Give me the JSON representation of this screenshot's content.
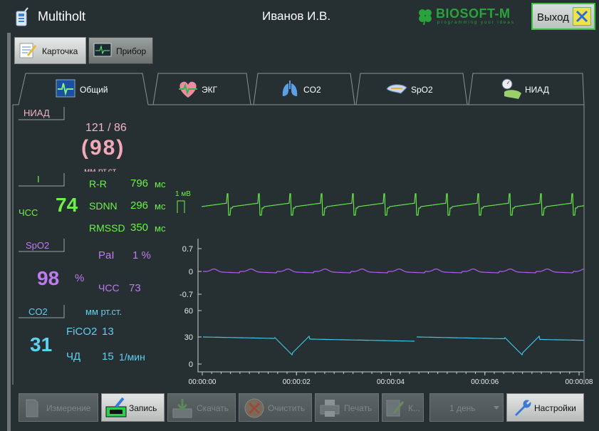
{
  "header": {
    "app_title": "Multiholt",
    "user_name": "Иванов И.В.",
    "logo_text": "BIOSOFT-M",
    "logo_sub": "programming your ideas",
    "exit_label": "Выход"
  },
  "mode_buttons": {
    "card_label": "Карточка",
    "device_label": "Прибор"
  },
  "tabs": [
    {
      "label": "Общий",
      "icon": "ecg-monitor-icon"
    },
    {
      "label": "ЭКГ",
      "icon": "heart-icon"
    },
    {
      "label": "CO2",
      "icon": "lungs-icon"
    },
    {
      "label": "SpO2",
      "icon": "finger-sensor-icon"
    },
    {
      "label": "НИАД",
      "icon": "blood-pressure-icon"
    }
  ],
  "nibp": {
    "tag": "НИАД",
    "sys_dia": "121 / 86",
    "mean": "(98)",
    "unit": "мм рт.ст."
  },
  "ecg": {
    "lead": "I",
    "hr_label": "ЧСС",
    "hr_value": "74",
    "rr_label": "R-R",
    "rr_value": "796",
    "rr_unit": "мс",
    "sdnn_label": "SDNN",
    "sdnn_value": "296",
    "sdnn_unit": "мс",
    "rmssd_label": "RMSSD",
    "rmssd_value": "350",
    "rmssd_unit": "мс",
    "scale_label": "1 мВ"
  },
  "spo2": {
    "tag": "SpO2",
    "value": "98",
    "unit": "%",
    "pai_label": "PaI",
    "pai_value": "1 %",
    "hr_label": "ЧСС",
    "hr_value": "73"
  },
  "co2": {
    "tag": "CO2",
    "unit": "мм рт.ст.",
    "fico2_label": "FiCO2",
    "fico2_value": "13",
    "value": "31",
    "rr_label": "ЧД",
    "rr_value": "15",
    "rr_unit": "1/мин"
  },
  "chart_data": {
    "type": "line",
    "x_ticks": [
      "00:00:00",
      "00:00:02",
      "00:00:04",
      "00:00:06",
      "00:00:08"
    ],
    "pleth_y_ticks": [
      "0.7",
      "0",
      "-0.7"
    ],
    "co2_y_ticks": [
      "60",
      "30",
      "0"
    ],
    "colors": {
      "ecg": "#66e34a",
      "pleth": "#b05cf0",
      "co2": "#3ec4e6"
    }
  },
  "bottom_buttons": [
    {
      "label": "Измерение",
      "enabled": false,
      "icon": "document-icon"
    },
    {
      "label": "Запись",
      "enabled": true,
      "icon": "recorder-icon"
    },
    {
      "label": "Скачать",
      "enabled": false,
      "icon": "download-icon"
    },
    {
      "label": "Очистить",
      "enabled": false,
      "icon": "clear-icon"
    },
    {
      "label": "Печать",
      "enabled": false,
      "icon": "printer-icon"
    },
    {
      "label": "К...",
      "enabled": false,
      "icon": "edit-document-icon"
    }
  ],
  "period_select": {
    "value": "1 день"
  },
  "settings_label": "Настройки"
}
